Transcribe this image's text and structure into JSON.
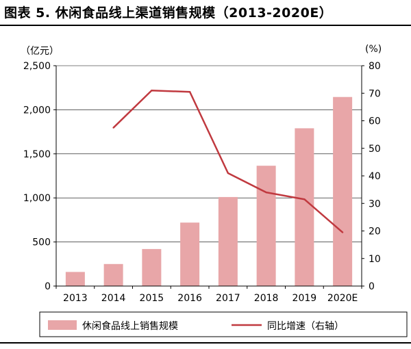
{
  "figure": {
    "title": "图表 5. 休闲食品线上渠道销售规模（2013-2020E）",
    "left_unit": "（亿元）",
    "right_unit": "(%)"
  },
  "colors": {
    "bar": "#e8a6a8",
    "line": "#c0393f",
    "axis": "#000000",
    "grid": "#000000"
  },
  "chart_data": {
    "type": "bar",
    "categories": [
      "2013",
      "2014",
      "2015",
      "2016",
      "2017",
      "2018",
      "2019",
      "2020E"
    ],
    "series": [
      {
        "name": "休闲食品线上销售规模",
        "type": "bar",
        "axis": "left",
        "values": [
          160,
          250,
          420,
          720,
          1010,
          1365,
          1790,
          2145
        ]
      },
      {
        "name": "同比增速（右轴）",
        "type": "line",
        "axis": "right",
        "values": [
          null,
          57.5,
          71,
          70.5,
          41,
          34,
          31.5,
          19.5
        ]
      }
    ],
    "ylim_left": [
      0,
      2500
    ],
    "ylim_right": [
      0,
      80
    ],
    "yticks_left": [
      "0",
      "500",
      "1,000",
      "1,500",
      "2,000",
      "2,500"
    ],
    "yticks_right": [
      "0",
      "10",
      "20",
      "30",
      "40",
      "50",
      "60",
      "70",
      "80"
    ],
    "grid": true,
    "legend_position": "bottom"
  }
}
